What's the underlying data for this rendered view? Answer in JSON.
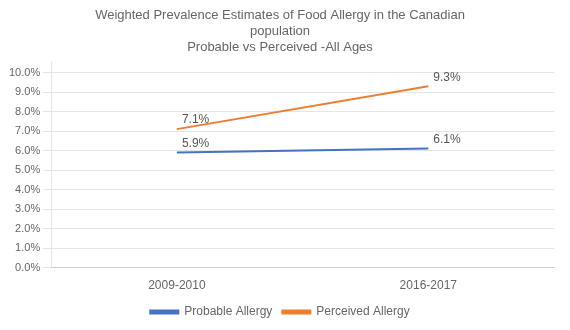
{
  "chart_data": {
    "type": "line",
    "title": [
      "Weighted Prevalence Estimates of Food Allergy in the Canadian",
      "population",
      "Probable vs Perceived -All Ages"
    ],
    "categories": [
      "2009-2010",
      "2016-2017"
    ],
    "series": [
      {
        "name": "Probable Allergy",
        "color": "#4472C4",
        "values": [
          0.059,
          0.061
        ],
        "value_labels": [
          "5.9%",
          "6.1%"
        ]
      },
      {
        "name": "Perceived Allergy",
        "color": "#ED7D31",
        "values": [
          0.071,
          0.093
        ],
        "value_labels": [
          "7.1%",
          "9.3%"
        ]
      }
    ],
    "ylim": [
      0.0,
      0.105
    ],
    "yticks": [
      {
        "value": 0.0,
        "label": "0.0%"
      },
      {
        "value": 0.01,
        "label": "1.0%"
      },
      {
        "value": 0.02,
        "label": "2.0%"
      },
      {
        "value": 0.03,
        "label": "3.0%"
      },
      {
        "value": 0.04,
        "label": "4.0%"
      },
      {
        "value": 0.05,
        "label": "5.0%"
      },
      {
        "value": 0.06,
        "label": "6.0%"
      },
      {
        "value": 0.07,
        "label": "7.0%"
      },
      {
        "value": 0.08,
        "label": "8.0%"
      },
      {
        "value": 0.09,
        "label": "9.0%"
      },
      {
        "value": 0.1,
        "label": "10.0%"
      }
    ],
    "grid": true,
    "legend": "bottom",
    "data_labels": true
  }
}
